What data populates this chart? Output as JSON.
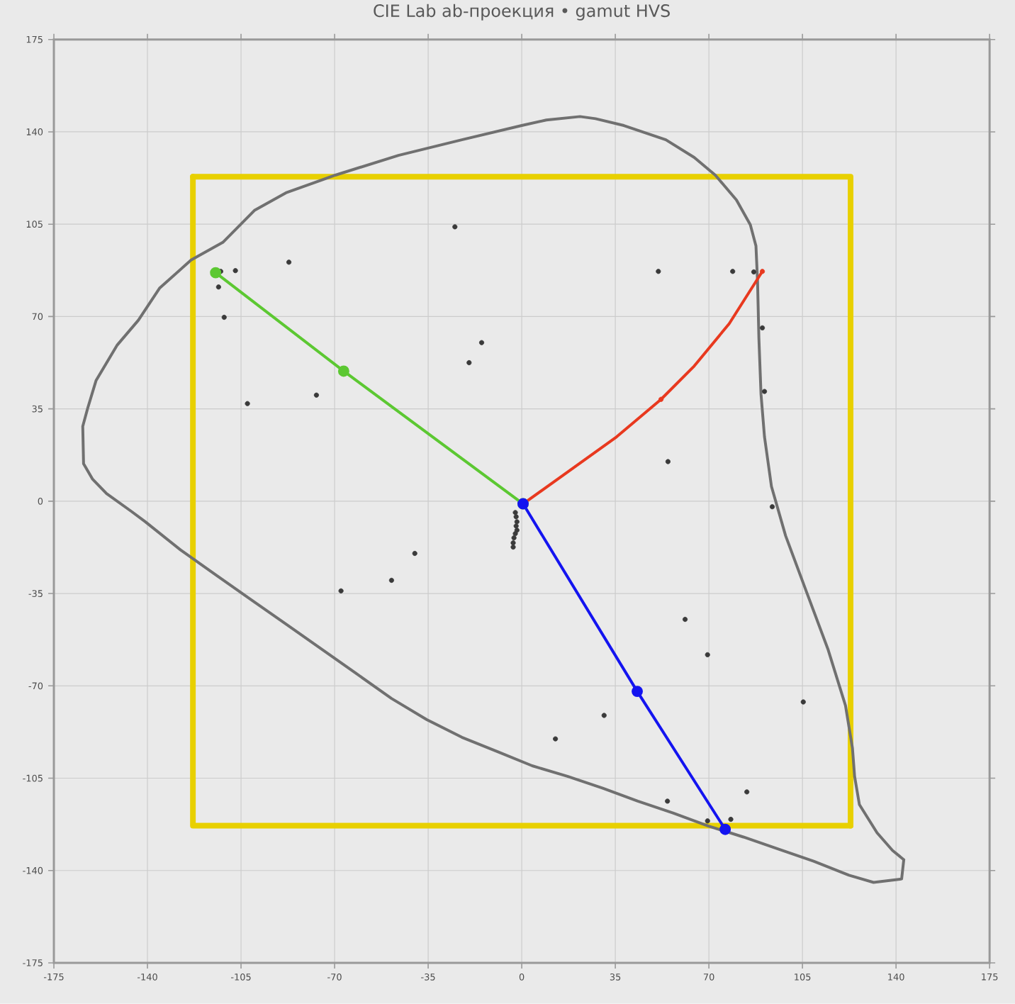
{
  "chart_data": {
    "type": "line",
    "title": "CIE Lab ab-проекция • gamut HVS",
    "xlim": [
      -175,
      175
    ],
    "ylim": [
      -175,
      175
    ],
    "xticks": [
      -175,
      -140,
      -105,
      -70,
      -35,
      0,
      35,
      70,
      105,
      140,
      175
    ],
    "yticks": [
      -175,
      -140,
      -105,
      -70,
      -35,
      0,
      35,
      70,
      105,
      140,
      175
    ],
    "grid": true,
    "series": [
      {
        "color": "#e8d000",
        "marker": "none",
        "x": [
          -123,
          123,
          123
        ],
        "values": [
          123,
          123,
          -123
        ]
      },
      {
        "color": "#e8d000",
        "marker": "none",
        "x": [
          123,
          -123,
          -123
        ],
        "values": [
          -123,
          -123,
          123
        ]
      },
      {
        "color": "#707070",
        "marker": "none",
        "x": [
          -164.2,
          -162.4,
          -159.2,
          -151.3,
          -143.4,
          -135.5,
          -123.7,
          -111.8,
          -100.0,
          -88.2,
          -69.7,
          -46.1,
          -22.4,
          0,
          9.2,
          21.8,
          27.6,
          38.2,
          53.9,
          64.5,
          72.4,
          80.3,
          85.5,
          87.6,
          88.2,
          88.7,
          89.5,
          90.8,
          93.4,
          98.7,
          106.6,
          114.5,
          121.1,
          123.7,
          124.5,
          126.3,
          132.9,
          138.7,
          142.9,
          null,
          142.9,
          142.1,
          131.6,
          122.4,
          109.2,
          96.1,
          82.9,
          69.7,
          56.6,
          43.4,
          30.3,
          17.1,
          3.9,
          -9.2,
          -22.4,
          -35.5,
          -48.7,
          -61.8,
          -75.0,
          -88.2,
          -101.3,
          -114.5,
          -127.6,
          -140.8,
          -146.1,
          -155.3,
          -160.5,
          -163.9,
          -164.2
        ],
        "values": [
          28.4,
          35.1,
          45.8,
          59.2,
          68.6,
          80.7,
          91.4,
          98.1,
          110.2,
          116.9,
          123.6,
          131.1,
          137.0,
          142.4,
          144.5,
          145.8,
          145.0,
          142.4,
          137.0,
          130.3,
          123.6,
          114.2,
          104.8,
          96.8,
          83.4,
          61.9,
          40.5,
          24.4,
          5.6,
          -13.1,
          -34.6,
          -56.0,
          -77.5,
          -93.6,
          -104.3,
          -115.0,
          -125.7,
          -132.4,
          -135.9,
          null,
          -135.9,
          -143.2,
          -144.5,
          -141.8,
          -136.5,
          -131.9,
          -127.3,
          -123.1,
          -118.2,
          -113.7,
          -108.8,
          -104.3,
          -100.3,
          -94.9,
          -89.5,
          -82.8,
          -74.8,
          -65.4,
          -56.0,
          -46.6,
          -37.3,
          -27.9,
          -18.5,
          -7.8,
          -3.8,
          2.9,
          8.3,
          14.2,
          28.4
        ]
      },
      {
        "type": "scatter",
        "color": "#3a3a3a",
        "marker": "circle",
        "x": [
          -112.6,
          -107.1,
          -87.1,
          -113.4,
          -111.3,
          -25.0,
          -15.0,
          -19.7,
          -76.8,
          -102.6,
          51.1,
          78.9,
          86.8,
          90.0,
          90.8,
          54.7,
          93.7,
          -40.0,
          -48.7,
          -67.6,
          61.1,
          69.5,
          105.3,
          30.8,
          12.6,
          84.2,
          54.5,
          69.5,
          78.2,
          -2.4,
          -2.1,
          -1.8,
          -2.1,
          -1.8,
          -2.4,
          -2.9,
          -3.2,
          -3.2
        ],
        "values": [
          87.1,
          87.4,
          90.6,
          81.2,
          69.7,
          104.0,
          60.1,
          52.5,
          40.2,
          37.0,
          87.1,
          87.1,
          86.9,
          65.7,
          41.6,
          15.0,
          -2.1,
          -19.8,
          -30.0,
          -34.0,
          -44.8,
          -58.2,
          -76.1,
          -81.2,
          -90.1,
          -110.2,
          -113.7,
          -121.2,
          -120.6,
          -4.3,
          -5.9,
          -7.8,
          -9.4,
          -11.0,
          -12.3,
          -13.9,
          -15.8,
          -17.4
        ]
      },
      {
        "color": "#5cc832",
        "marker": "circle",
        "x": [
          -114.5,
          -66.6,
          0.5
        ],
        "values": [
          86.6,
          49.3,
          -1
        ]
      },
      {
        "color": "#e8391f",
        "marker": "none",
        "x": [
          0.5,
          17.1,
          35.5,
          52.1,
          64.5,
          77.6,
          90.0
        ],
        "values": [
          -1,
          11.0,
          24.4,
          38.6,
          51.2,
          67.3,
          87.1
        ]
      },
      {
        "type": "scatter",
        "color": "#e8391f",
        "marker": "circle",
        "x": [
          52.1,
          90.0
        ],
        "values": [
          38.6,
          87.1
        ]
      },
      {
        "color": "#1414f0",
        "marker": "circle",
        "x": [
          0.5,
          43.2,
          76.1
        ],
        "values": [
          -1,
          -72.1,
          -124.4
        ]
      }
    ]
  }
}
